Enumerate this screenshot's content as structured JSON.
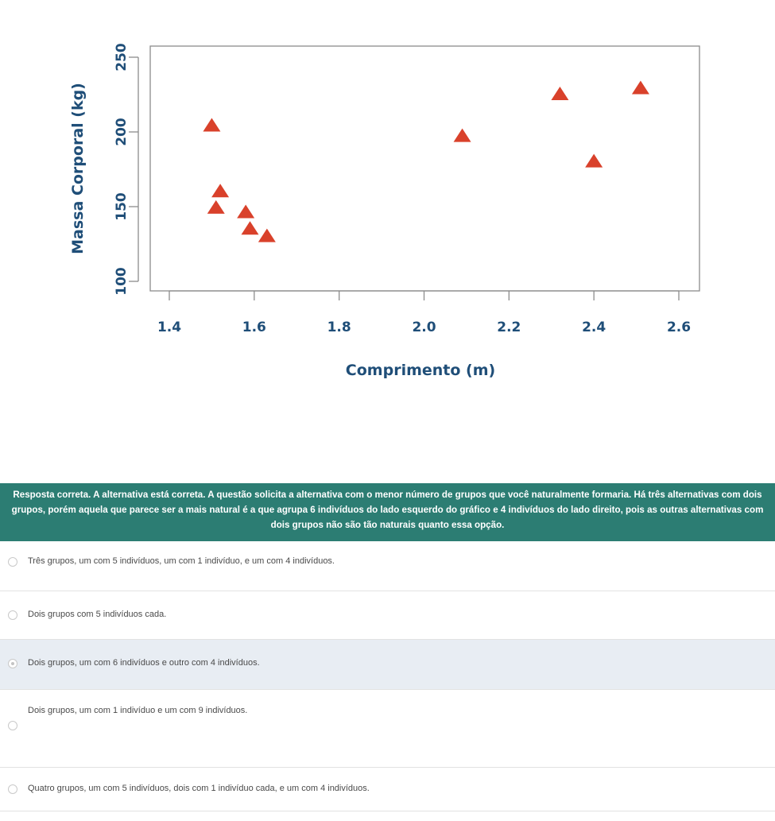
{
  "chart_data": {
    "type": "scatter",
    "xlabel": "Comprimento (m)",
    "ylabel": "Massa Corporal (kg)",
    "xlim": [
      1.35,
      2.65
    ],
    "ylim": [
      95,
      255
    ],
    "x_ticks": [
      1.4,
      1.6,
      1.8,
      2.0,
      2.2,
      2.4,
      2.6
    ],
    "x_tick_labels": [
      "1.4",
      "1.6",
      "1.8",
      "2.0",
      "2.2",
      "2.4",
      "2.6"
    ],
    "y_ticks": [
      100,
      150,
      200,
      250
    ],
    "y_tick_labels": [
      "100",
      "150",
      "200",
      "250"
    ],
    "marker": "triangle",
    "marker_color": "#d9412b",
    "axis_text_color": "#1f4e78",
    "grid": false,
    "points": [
      {
        "x": 1.5,
        "y": 204
      },
      {
        "x": 1.52,
        "y": 160
      },
      {
        "x": 1.51,
        "y": 149
      },
      {
        "x": 1.58,
        "y": 146
      },
      {
        "x": 1.59,
        "y": 135
      },
      {
        "x": 1.63,
        "y": 130
      },
      {
        "x": 2.09,
        "y": 197
      },
      {
        "x": 2.32,
        "y": 225
      },
      {
        "x": 2.4,
        "y": 180
      },
      {
        "x": 2.51,
        "y": 229
      }
    ]
  },
  "feedback": {
    "text": "Resposta correta. A alternativa está correta. A questão solicita a alternativa com o menor número de grupos que você naturalmente formaria. Há três alternativas com dois grupos, porém aquela que parece ser a mais natural é a que agrupa 6 indivíduos do lado esquerdo do gráfico e 4 indivíduos do lado direito, pois as outras alternativas com dois grupos não são tão naturais quanto essa opção.",
    "background": "#2c7d73"
  },
  "options": [
    {
      "label": "Três grupos, um com 5 indivíduos, um com 1 indivíduo, e um com 4 indivíduos.",
      "selected": false
    },
    {
      "label": "Dois grupos com 5 indivíduos cada.",
      "selected": false
    },
    {
      "label": "Dois grupos, um com 6 indivíduos e outro com 4 indivíduos.",
      "selected": true
    },
    {
      "label": "Dois grupos, um com 1 indivíduo e um com 9 indivíduos.",
      "selected": false
    },
    {
      "label": "Quatro grupos, um com 5 indivíduos, dois com 1 indivíduo cada, e um com 4 indivíduos.",
      "selected": false
    }
  ]
}
